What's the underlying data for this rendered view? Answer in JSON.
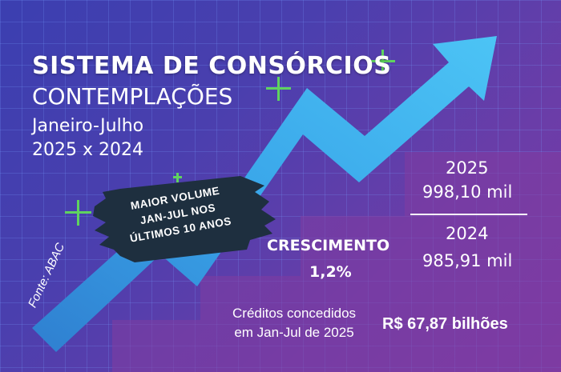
{
  "title": "SISTEMA DE CONSÓRCIOS",
  "subtitle": "CONTEMPLAÇÕES",
  "period": "Janeiro-Julho",
  "comparison": "2025 x 2024",
  "banner": {
    "line1": "MAIOR VOLUME",
    "line2": "JAN-JUL NOS",
    "line3": "ÚLTIMOS 10 ANOS"
  },
  "stats": {
    "year_current": "2025",
    "value_current": "998,10 mil",
    "year_previous": "2024",
    "value_previous": "985,91 mil"
  },
  "growth": {
    "label": "CRESCIMENTO",
    "value": "1,2%"
  },
  "credits": {
    "line1": "Créditos concedidos",
    "line2": "em Jan-Jul de 2025",
    "value": "R$ 67,87 bilhões"
  },
  "source": "Fonte: ABAC",
  "colors": {
    "background": "#4a3fae",
    "arrow": "#3fb2ee",
    "banner": "#1e2f3f",
    "sparkle": "#5fd35f",
    "text": "#ffffff"
  },
  "icons": [
    "up-trend-arrow",
    "plus-sparkle"
  ]
}
